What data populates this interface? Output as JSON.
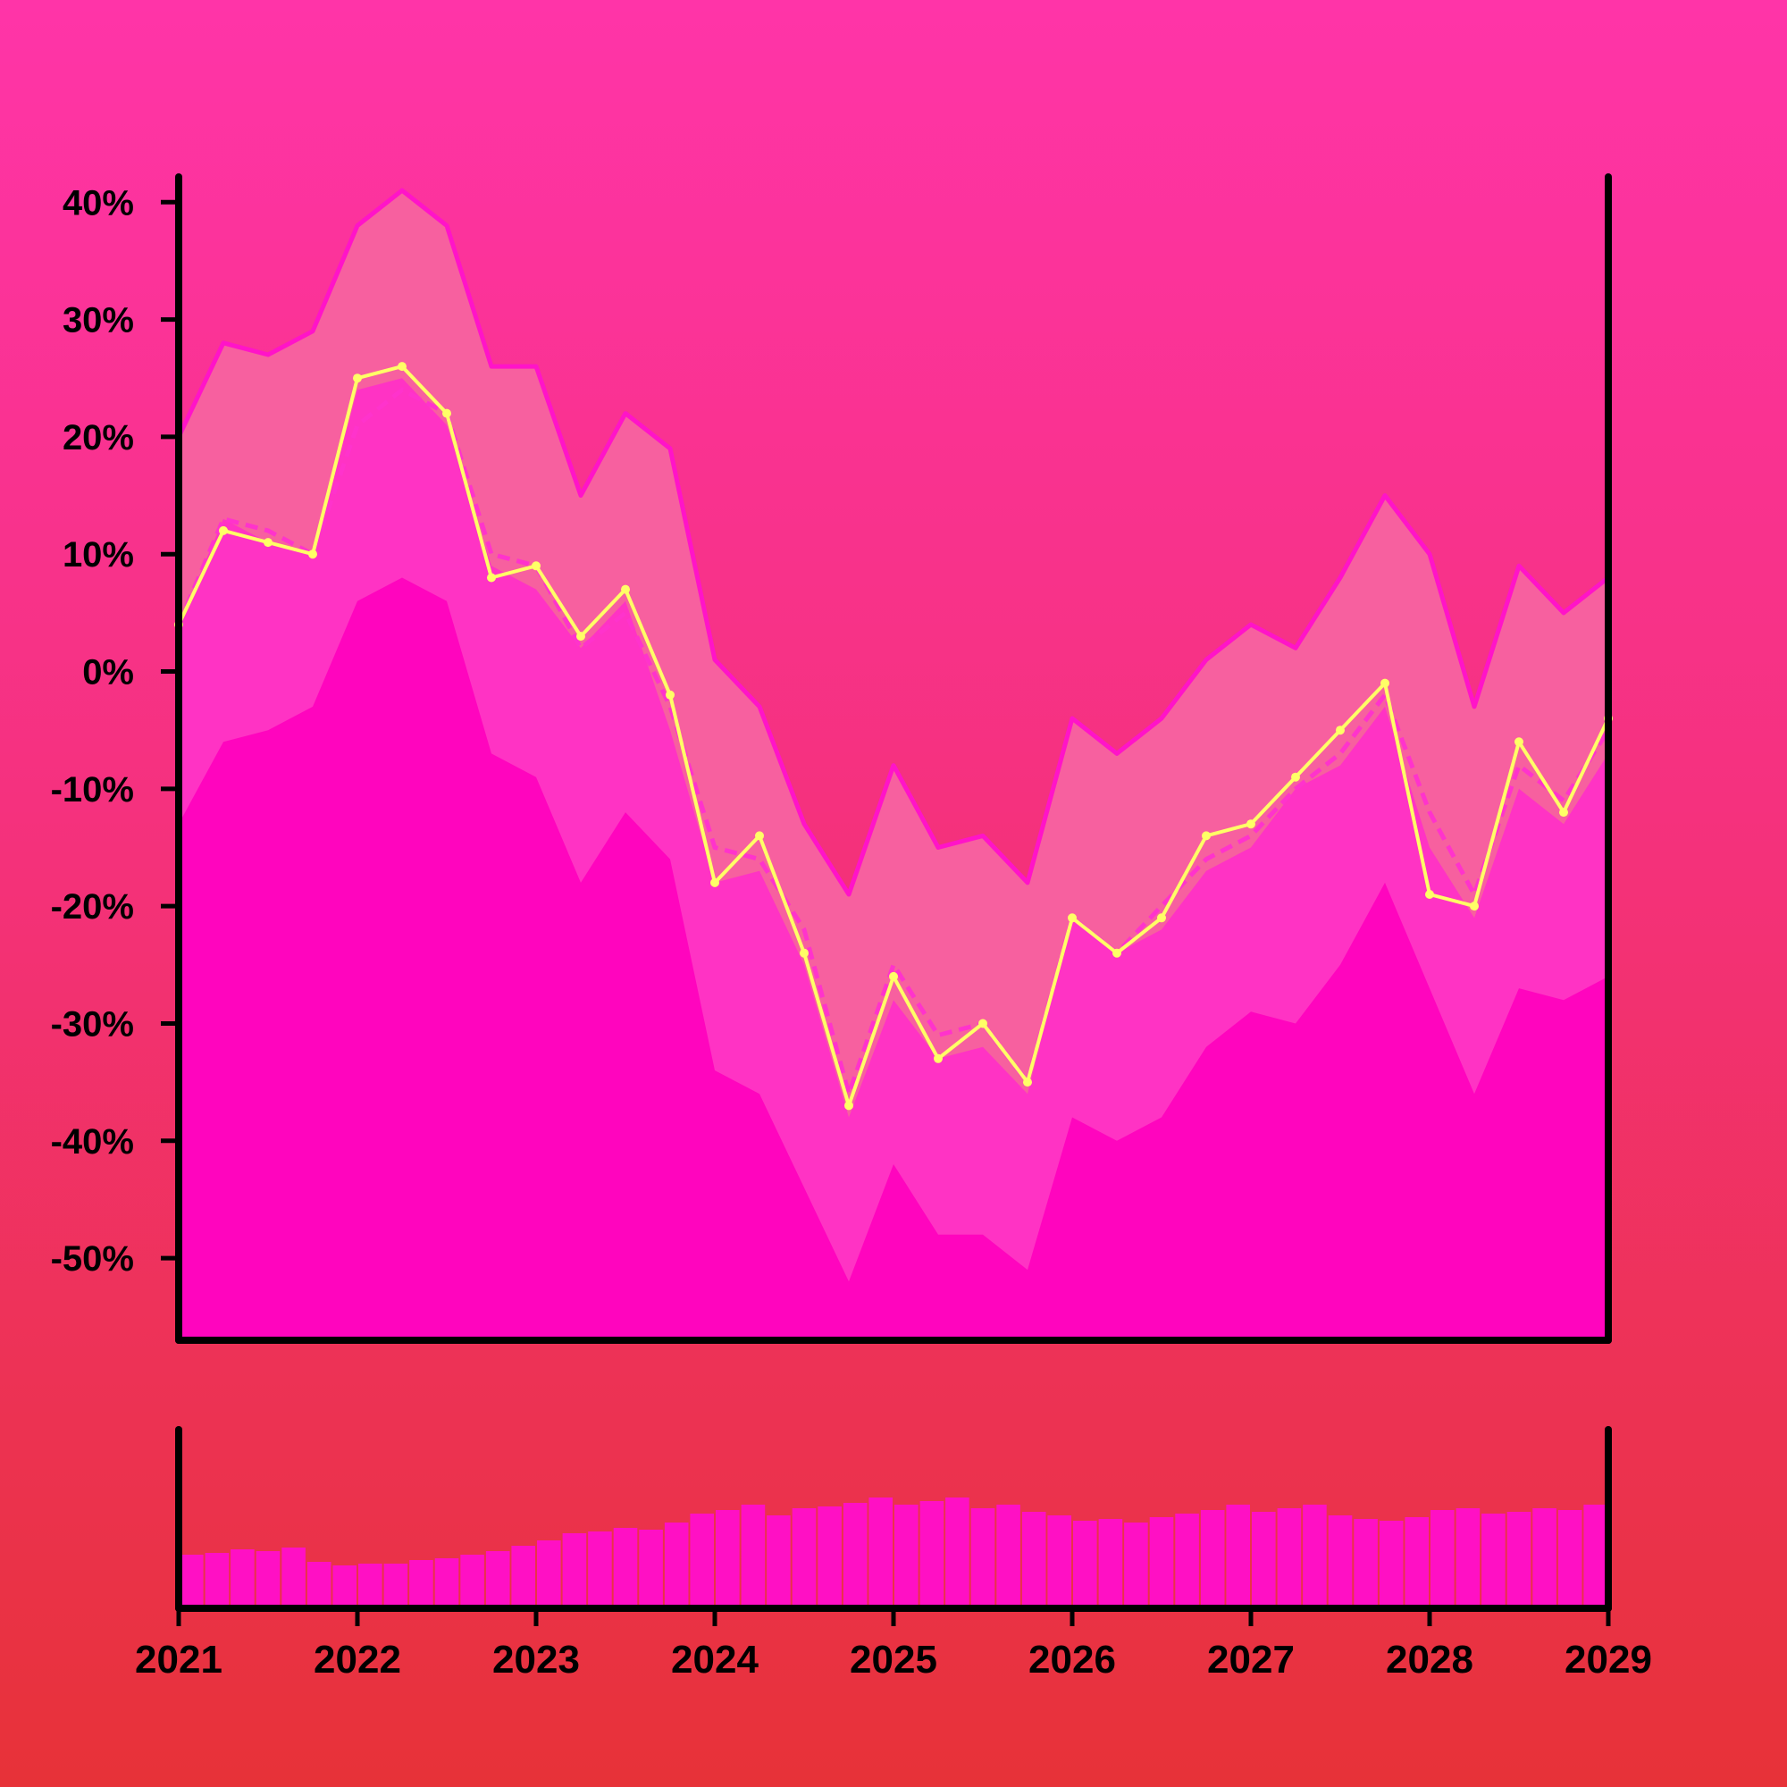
{
  "chart_data": {
    "type": "line",
    "title": "",
    "xlabel": "",
    "ylabel": "",
    "x_ticks": [
      "2021",
      "2022",
      "2023",
      "2024",
      "2025",
      "2026",
      "2027",
      "2028",
      "2029"
    ],
    "y_ticks": [
      "40%",
      "30%",
      "20%",
      "10%",
      "0%",
      "-10%",
      "-20%",
      "-30%",
      "-40%",
      "-50%"
    ],
    "xlim": [
      "2021-01",
      "2029-01"
    ],
    "ylim": [
      -57,
      42
    ],
    "grid": false,
    "legend": "none",
    "colors": {
      "price_line": "#ffff66",
      "moving_average": "#ff33cc",
      "upper_band": "#ff14c8",
      "outer_band_fill": "#f7609f",
      "inner_band_fill": "#ff33c4",
      "lower_fill": "#ff05be",
      "volume": "#ff10c4",
      "axis": "#000000"
    },
    "dates": [
      "2021-01",
      "2021-04",
      "2021-07",
      "2021-10",
      "2022-01",
      "2022-04",
      "2022-07",
      "2022-10",
      "2023-01",
      "2023-04",
      "2023-07",
      "2023-10",
      "2024-01",
      "2024-04",
      "2024-07",
      "2024-10",
      "2025-01",
      "2025-04",
      "2025-07",
      "2025-10",
      "2026-01",
      "2026-04",
      "2026-07",
      "2026-10",
      "2027-01",
      "2027-04",
      "2027-07",
      "2027-10",
      "2028-01",
      "2028-04",
      "2028-07",
      "2028-10",
      "2029-01"
    ],
    "series": [
      {
        "values": [
          4,
          12,
          11,
          10,
          25,
          26,
          22,
          8,
          9,
          3,
          7,
          -2,
          -18,
          -14,
          -24,
          -37,
          -26,
          -33,
          -30,
          -35,
          -21,
          -24,
          -21,
          -14,
          -13,
          -9,
          -5,
          -1,
          -19,
          -20,
          -6,
          -12,
          -4
        ]
      },
      {
        "values": [
          4,
          13,
          12,
          10,
          21,
          24,
          22,
          10,
          9,
          2,
          5,
          -3,
          -15,
          -16,
          -22,
          -36,
          -25,
          -31,
          -30,
          -35,
          -21,
          -24,
          -20,
          -16,
          -14,
          -10,
          -7,
          -2,
          -12,
          -19,
          -8,
          -11,
          -5
        ]
      },
      {
        "values": [
          20,
          28,
          27,
          29,
          38,
          41,
          38,
          26,
          26,
          15,
          22,
          19,
          1,
          -3,
          -13,
          -19,
          -8,
          -15,
          -14,
          -18,
          -4,
          -7,
          -4,
          1,
          4,
          2,
          8,
          15,
          10,
          -3,
          9,
          5,
          8
        ]
      },
      {
        "values": [
          4,
          13,
          11,
          10,
          24,
          25,
          21,
          9,
          7,
          2,
          6,
          -5,
          -18,
          -17,
          -25,
          -38,
          -28,
          -33,
          -32,
          -36,
          -21,
          -24,
          -22,
          -17,
          -15,
          -10,
          -8,
          -3,
          -15,
          -21,
          -10,
          -13,
          -7
        ]
      },
      {
        "values": [
          -13,
          -6,
          -5,
          -3,
          6,
          8,
          6,
          -7,
          -9,
          -18,
          -12,
          -16,
          -34,
          -36,
          -44,
          -52,
          -42,
          -48,
          -48,
          -51,
          -38,
          -40,
          -38,
          -32,
          -29,
          -30,
          -25,
          -18,
          -27,
          -36,
          -27,
          -28,
          -26
        ]
      }
    ],
    "volume_values": [
      30,
      31,
      33,
      32,
      34,
      26,
      24,
      25,
      25,
      27,
      28,
      30,
      32,
      35,
      38,
      42,
      43,
      45,
      44,
      48,
      53,
      55,
      58,
      52,
      56,
      57,
      59,
      62,
      58,
      60,
      62,
      56,
      58,
      54,
      52,
      49,
      50,
      48,
      51,
      53,
      55,
      58,
      54,
      56,
      58,
      52,
      50,
      49,
      51,
      55,
      56,
      53,
      54,
      56,
      55,
      58
    ]
  }
}
